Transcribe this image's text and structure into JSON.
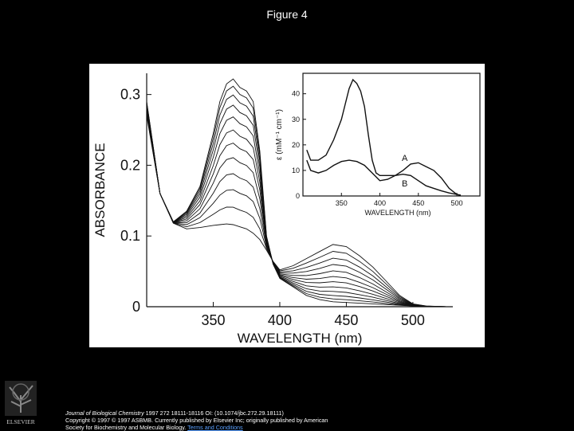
{
  "slide": {
    "title": "Figure 4",
    "publisher_logo": "ELSEVIER"
  },
  "citation": {
    "journal": "Journal of Biological Chemistry",
    "reference": " 1997 272 18111-18116 OI: (10.1074/jbc.272.29.18111)",
    "copyright": "Copyright © 1997 © 1997 ASBMB. Currently published by Elsevier Inc; originally published by American",
    "society": "Society for Biochemistry and Molecular Biology. ",
    "terms_link": "Terms and Conditions"
  },
  "colors": {
    "background": "#000000",
    "panel": "#ffffff",
    "ink": "#111111",
    "link": "#5aa0ff"
  },
  "chart_data": [
    {
      "type": "line",
      "xlabel": "WAVELENGTH (nm)",
      "ylabel": "ABSORBANCE",
      "xlim": [
        300,
        530
      ],
      "ylim": [
        0,
        0.33
      ],
      "xticks": [
        350,
        400,
        450,
        500
      ],
      "yticks": [
        0,
        0.1,
        0.2,
        0.3
      ],
      "ytick_labels": [
        "0",
        "0.1",
        "0.2",
        "0.3"
      ],
      "grid": false,
      "series": [
        {
          "scale": 0.0
        },
        {
          "scale": 0.12
        },
        {
          "scale": 0.24
        },
        {
          "scale": 0.35
        },
        {
          "scale": 0.46
        },
        {
          "scale": 0.56
        },
        {
          "scale": 0.65
        },
        {
          "scale": 0.74
        },
        {
          "scale": 0.82
        },
        {
          "scale": 0.89
        },
        {
          "scale": 0.95
        },
        {
          "scale": 1.0
        }
      ],
      "endpoints": {
        "x": [
          300,
          310,
          320,
          330,
          340,
          350,
          355,
          360,
          365,
          370,
          375,
          380,
          385,
          390,
          395,
          400,
          410,
          420,
          430,
          440,
          450,
          460,
          470,
          480,
          490,
          500,
          510,
          525
        ],
        "y_start": [
          0.27,
          0.16,
          0.118,
          0.11,
          0.112,
          0.115,
          0.116,
          0.117,
          0.116,
          0.113,
          0.11,
          0.104,
          0.095,
          0.08,
          0.064,
          0.052,
          0.058,
          0.068,
          0.078,
          0.088,
          0.085,
          0.072,
          0.056,
          0.036,
          0.016,
          0.004,
          0.001,
          0.0
        ],
        "y_end": [
          0.29,
          0.16,
          0.12,
          0.135,
          0.17,
          0.245,
          0.29,
          0.315,
          0.322,
          0.31,
          0.305,
          0.29,
          0.22,
          0.1,
          0.06,
          0.04,
          0.028,
          0.016,
          0.01,
          0.007,
          0.006,
          0.005,
          0.004,
          0.003,
          0.002,
          0.001,
          0.0,
          0.0
        ]
      }
    },
    {
      "type": "line",
      "inset": true,
      "xlabel": "WAVELENGTH (nm)",
      "ylabel": "ε (mM⁻¹ cm⁻¹)",
      "xlim": [
        300,
        530
      ],
      "ylim": [
        0,
        48
      ],
      "xticks": [
        350,
        400,
        450,
        500
      ],
      "yticks": [
        0,
        10,
        20,
        30,
        40
      ],
      "grid": false,
      "series": [
        {
          "name": "A",
          "x": [
            305,
            310,
            320,
            330,
            340,
            350,
            355,
            360,
            365,
            370,
            375,
            380,
            385,
            390,
            395,
            400,
            410,
            420,
            430,
            440,
            450,
            460,
            470,
            480,
            490,
            500,
            505
          ],
          "y": [
            18,
            14,
            14,
            16,
            22,
            30,
            36,
            42,
            45.5,
            44,
            41,
            35,
            24,
            14,
            9,
            8,
            8,
            8,
            8.5,
            8,
            6,
            4,
            3,
            2,
            1.2,
            0.6,
            0.3
          ]
        },
        {
          "name": "B",
          "x": [
            305,
            310,
            320,
            330,
            340,
            350,
            360,
            370,
            380,
            390,
            400,
            410,
            420,
            430,
            440,
            450,
            460,
            470,
            480,
            490,
            500,
            505
          ],
          "y": [
            14,
            10,
            9,
            10,
            12,
            13.5,
            14,
            13.5,
            12,
            9,
            6,
            6.5,
            8,
            10,
            12.5,
            13,
            11.5,
            10,
            7,
            3,
            0.6,
            0.2
          ]
        }
      ]
    }
  ]
}
